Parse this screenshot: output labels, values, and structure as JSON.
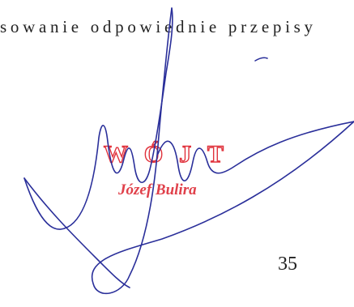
{
  "body": {
    "text_line": "sowanie odpowiednie przepisy",
    "page_number": "35"
  },
  "stamp": {
    "title": "WÓJT",
    "name": "Józef Bulira"
  }
}
